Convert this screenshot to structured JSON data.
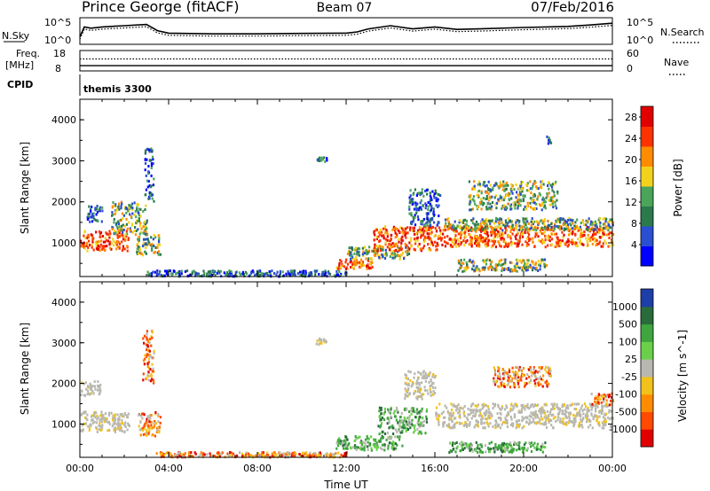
{
  "header": {
    "station": "Prince George (fitACF)",
    "beam": "Beam 07",
    "date": "07/Feb/2016"
  },
  "strip_nsky": {
    "left_label": "N.Sky",
    "right_label": "N.Search",
    "left_ticks": [
      "10^5",
      "10^0"
    ],
    "right_ticks": [
      "10^5",
      "10^0"
    ],
    "line_style": "solid",
    "right_style": "dotted"
  },
  "strip_freq": {
    "left_label_1": "Freq.",
    "left_label_2": "[MHz]",
    "right_label": "Nave",
    "left_ticks": [
      "18",
      "8"
    ],
    "right_ticks": [
      "60",
      "0"
    ]
  },
  "cpid": {
    "label": "CPID",
    "value": "themis 3300"
  },
  "colors": {
    "power": [
      "#0000ff",
      "#2a4fd0",
      "#2b7a4b",
      "#4aa55a",
      "#f2d21c",
      "#ff8c00",
      "#ff3300",
      "#e00000"
    ],
    "velocity": [
      "#1e3ea8",
      "#2a6b3c",
      "#3fa63f",
      "#6ad04a",
      "#b8b8b0",
      "#f2c21c",
      "#ff8c00",
      "#ff4a00",
      "#e00000"
    ],
    "ground_scatter": "#b8b8b0"
  },
  "chart_data": [
    {
      "type": "heatmap",
      "panel": "power",
      "ylabel": "Slant Range [km]",
      "ylim": [
        180,
        4500
      ],
      "xlim_hours": [
        0,
        24
      ],
      "y_ticks": [
        "1000",
        "2000",
        "3000",
        "4000"
      ],
      "colorbar": {
        "label": "Power [dB]",
        "range": [
          0,
          30
        ],
        "ticks": [
          "4",
          "8",
          "12",
          "16",
          "20",
          "24",
          "28"
        ]
      },
      "regions": [
        {
          "t": [
            0.0,
            2.2
          ],
          "r": [
            800,
            1300
          ],
          "level": "high"
        },
        {
          "t": [
            1.4,
            3.0
          ],
          "r": [
            1200,
            2000
          ],
          "level": "mid"
        },
        {
          "t": [
            2.5,
            3.6
          ],
          "r": [
            700,
            1200
          ],
          "level": "mid"
        },
        {
          "t": [
            0.3,
            1.0
          ],
          "r": [
            1500,
            1900
          ],
          "level": "low"
        },
        {
          "t": [
            2.9,
            3.3
          ],
          "r": [
            2000,
            3300
          ],
          "level": "low"
        },
        {
          "t": [
            10.6,
            11.1
          ],
          "r": [
            2950,
            3100
          ],
          "level": "low"
        },
        {
          "t": [
            11.5,
            13.2
          ],
          "r": [
            350,
            600
          ],
          "level": "high"
        },
        {
          "t": [
            12.0,
            14.8
          ],
          "r": [
            600,
            900
          ],
          "level": "mid"
        },
        {
          "t": [
            13.2,
            16.2
          ],
          "r": [
            800,
            1400
          ],
          "level": "high"
        },
        {
          "t": [
            14.8,
            16.2
          ],
          "r": [
            1400,
            2300
          ],
          "level": "low"
        },
        {
          "t": [
            16.2,
            24.0
          ],
          "r": [
            900,
            1400
          ],
          "level": "high"
        },
        {
          "t": [
            16.4,
            24.0
          ],
          "r": [
            1300,
            1600
          ],
          "level": "mid"
        },
        {
          "t": [
            17.5,
            21.5
          ],
          "r": [
            1800,
            2500
          ],
          "level": "mid"
        },
        {
          "t": [
            17.0,
            21.0
          ],
          "r": [
            300,
            600
          ],
          "level": "mid"
        },
        {
          "t": [
            3.0,
            12.0
          ],
          "r": [
            180,
            320
          ],
          "level": "low"
        },
        {
          "t": [
            21.0,
            21.3
          ],
          "r": [
            3400,
            3600
          ],
          "level": "low"
        }
      ]
    },
    {
      "type": "heatmap",
      "panel": "velocity",
      "ylabel": "Slant Range [km]",
      "xlabel": "Time UT",
      "ylim": [
        180,
        4500
      ],
      "xlim_hours": [
        0,
        24
      ],
      "y_ticks": [
        "1000",
        "2000",
        "3000",
        "4000"
      ],
      "x_ticks": [
        "00:00",
        "04:00",
        "08:00",
        "12:00",
        "16:00",
        "20:00",
        "00:00"
      ],
      "colorbar": {
        "label": "Velocity [m s^-1]",
        "ticks": [
          "1000",
          "500",
          "100",
          "25",
          "-25",
          "-100",
          "-500",
          "-1000"
        ]
      },
      "regions": [
        {
          "t": [
            0.0,
            2.2
          ],
          "r": [
            800,
            1300
          ],
          "level": "gs"
        },
        {
          "t": [
            0.0,
            0.9
          ],
          "r": [
            1700,
            2050
          ],
          "level": "gs"
        },
        {
          "t": [
            2.6,
            3.6
          ],
          "r": [
            700,
            1300
          ],
          "level": "neg"
        },
        {
          "t": [
            2.8,
            3.3
          ],
          "r": [
            2000,
            3300
          ],
          "level": "neg"
        },
        {
          "t": [
            10.6,
            11.1
          ],
          "r": [
            2950,
            3100
          ],
          "level": "gs"
        },
        {
          "t": [
            11.5,
            14.5
          ],
          "r": [
            350,
            700
          ],
          "level": "pos"
        },
        {
          "t": [
            13.4,
            15.6
          ],
          "r": [
            750,
            1400
          ],
          "level": "pos"
        },
        {
          "t": [
            14.6,
            16.0
          ],
          "r": [
            1600,
            2300
          ],
          "level": "gs"
        },
        {
          "t": [
            16.0,
            24.0
          ],
          "r": [
            900,
            1500
          ],
          "level": "gs"
        },
        {
          "t": [
            18.6,
            21.2
          ],
          "r": [
            1900,
            2400
          ],
          "level": "neg"
        },
        {
          "t": [
            16.6,
            21.0
          ],
          "r": [
            300,
            550
          ],
          "level": "pos"
        },
        {
          "t": [
            3.4,
            12.0
          ],
          "r": [
            180,
            300
          ],
          "level": "neg"
        },
        {
          "t": [
            23.0,
            24.0
          ],
          "r": [
            1450,
            1750
          ],
          "level": "neg"
        }
      ]
    }
  ],
  "time_series": {
    "hours": [
      0,
      0.2,
      0.5,
      1,
      2,
      3,
      3.5,
      4,
      6,
      8,
      10,
      12,
      12.5,
      13,
      14,
      15,
      16,
      17,
      18,
      20,
      22,
      23,
      24
    ],
    "nsky": [
      0.3,
      0.7,
      0.65,
      0.7,
      0.75,
      0.8,
      0.55,
      0.45,
      0.42,
      0.42,
      0.44,
      0.45,
      0.5,
      0.62,
      0.75,
      0.62,
      0.7,
      0.6,
      0.62,
      0.68,
      0.72,
      0.78,
      0.85
    ],
    "freq_level": 0.55,
    "nave_level": 0.75
  }
}
